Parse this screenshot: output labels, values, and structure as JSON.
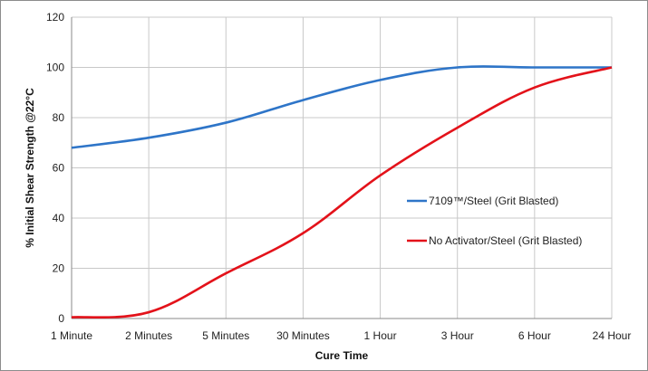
{
  "chart_data": {
    "type": "line",
    "xlabel": "Cure Time",
    "ylabel": "% Initial Shear Strength @22°C",
    "categories": [
      "1 Minute",
      "2 Minutes",
      "5 Minutes",
      "30 Minutes",
      "1 Hour",
      "3 Hour",
      "6 Hour",
      "24 Hour"
    ],
    "ylim": [
      0,
      120
    ],
    "yticks": [
      0,
      20,
      40,
      60,
      80,
      100,
      120
    ],
    "grid": true,
    "legend_placement": "right",
    "series": [
      {
        "name": "7109™/Steel (Grit Blasted)",
        "color": "#2e75c8",
        "values": [
          68,
          72,
          78,
          87,
          95,
          100,
          100,
          100
        ]
      },
      {
        "name": "No Activator/Steel (Grit Blasted)",
        "color": "#e3121a",
        "values": [
          0.5,
          2.5,
          18,
          34,
          57,
          76,
          92,
          100
        ]
      }
    ]
  }
}
